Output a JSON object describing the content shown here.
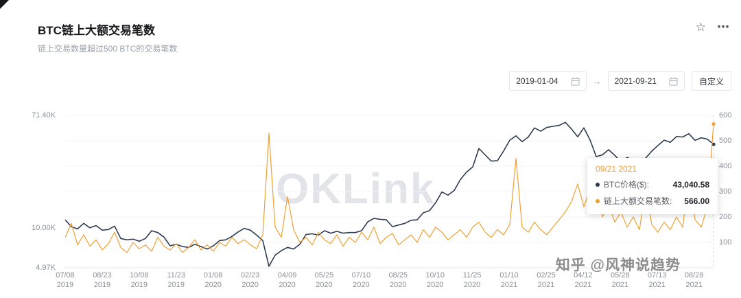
{
  "header": {
    "title": "BTC链上大额交易笔数",
    "subtitle": "链上交易数量超过500 BTC的交易笔数"
  },
  "icons": {
    "star": "☆",
    "more": "⋯",
    "arrow": "→"
  },
  "toolbar": {
    "start_date": "2019-01-04",
    "end_date": "2021-09-21",
    "custom_label": "自定义"
  },
  "watermark": "OKLink",
  "credit": "知乎 @风神说趋势",
  "tooltip": {
    "date": "09/21 2021",
    "rows": [
      {
        "label": "BTC价格($):",
        "value": "43,040.58",
        "color": "#2e3a50"
      },
      {
        "label": "链上大额交易笔数:",
        "value": "566.00",
        "color": "#f0a033"
      }
    ]
  },
  "chart_data": {
    "type": "line",
    "title": "BTC链上大额交易笔数",
    "subtitle": "链上交易数量超过500 BTC的交易笔数",
    "legend_position": "tooltip-only",
    "grid": false,
    "left_axis": {
      "scale": "log",
      "min": 4.97,
      "max": 71.4,
      "unit": "K $",
      "tick_labels": [
        "71.40K",
        "10.00K",
        "4.97K"
      ],
      "tick_values": [
        71.4,
        10.0,
        4.97
      ]
    },
    "right_axis": {
      "scale": "linear",
      "min": 0,
      "max": 600,
      "tick_values": [
        600,
        500,
        400,
        300,
        200,
        100
      ]
    },
    "x_ticks": [
      {
        "date": "07/08",
        "year": "2019"
      },
      {
        "date": "08/23",
        "year": "2019"
      },
      {
        "date": "10/08",
        "year": "2019"
      },
      {
        "date": "11/23",
        "year": "2019"
      },
      {
        "date": "01/08",
        "year": "2020"
      },
      {
        "date": "02/23",
        "year": "2020"
      },
      {
        "date": "04/09",
        "year": "2020"
      },
      {
        "date": "05/25",
        "year": "2020"
      },
      {
        "date": "07/10",
        "year": "2020"
      },
      {
        "date": "08/25",
        "year": "2020"
      },
      {
        "date": "10/10",
        "year": "2020"
      },
      {
        "date": "11/25",
        "year": "2020"
      },
      {
        "date": "01/10",
        "year": "2021"
      },
      {
        "date": "02/25",
        "year": "2021"
      },
      {
        "date": "04/12",
        "year": "2021"
      },
      {
        "date": "05/28",
        "year": "2021"
      },
      {
        "date": "07/13",
        "year": "2021"
      },
      {
        "date": "08/28",
        "year": "2021"
      }
    ],
    "series": [
      {
        "name": "BTC价格($)",
        "axis": "left",
        "color": "#2e3a50",
        "unit": "K",
        "values": [
          11.5,
          10.2,
          9.8,
          10.8,
          10.0,
          10.4,
          9.6,
          9.7,
          10.3,
          8.3,
          8.1,
          8.2,
          7.9,
          8.3,
          9.5,
          9.2,
          8.5,
          7.3,
          7.5,
          7.2,
          7.1,
          7.5,
          7.2,
          6.9,
          7.3,
          8.0,
          8.1,
          8.6,
          9.3,
          9.9,
          9.6,
          8.8,
          8.0,
          5.1,
          6.2,
          6.7,
          7.1,
          6.9,
          7.5,
          8.9,
          9.0,
          8.8,
          9.5,
          9.1,
          9.4,
          9.1,
          9.2,
          9.2,
          9.5,
          11.1,
          11.8,
          11.6,
          11.5,
          10.2,
          10.5,
          10.8,
          11.4,
          11.5,
          13.0,
          13.5,
          15.5,
          18.7,
          17.7,
          19.2,
          23.2,
          26.5,
          29.0,
          40.0,
          35.8,
          32.1,
          32.3,
          38.3,
          46.3,
          49.9,
          45.1,
          48.9,
          57.3,
          54.1,
          57.8,
          58.9,
          59.9,
          63.2,
          56.2,
          49.1,
          57.4,
          46.4,
          34.7,
          35.8,
          39.2,
          35.5,
          31.6,
          34.2,
          32.7,
          31.5,
          33.8,
          38.2,
          42.2,
          46.3,
          44.6,
          49.3,
          48.9,
          51.8,
          46.1,
          48.3,
          47.1,
          43.04
        ]
      },
      {
        "name": "链上大额交易笔数",
        "axis": "right",
        "color": "#f0a033",
        "values": [
          120,
          175,
          90,
          130,
          85,
          110,
          70,
          95,
          140,
          80,
          60,
          100,
          75,
          90,
          65,
          120,
          85,
          70,
          95,
          60,
          80,
          110,
          70,
          90,
          65,
          100,
          85,
          120,
          95,
          110,
          90,
          75,
          130,
          530,
          160,
          120,
          280,
          150,
          100,
          120,
          90,
          140,
          110,
          95,
          130,
          85,
          120,
          100,
          140,
          110,
          160,
          95,
          120,
          135,
          90,
          110,
          130,
          100,
          150,
          120,
          160,
          140,
          110,
          130,
          150,
          120,
          160,
          180,
          140,
          120,
          150,
          130,
          170,
          430,
          160,
          140,
          180,
          150,
          130,
          160,
          190,
          220,
          260,
          330,
          240,
          310,
          290,
          200,
          250,
          180,
          220,
          160,
          200,
          150,
          310,
          170,
          140,
          180,
          150,
          200,
          160,
          350,
          190,
          160,
          240,
          566
        ]
      }
    ],
    "highlight": {
      "x_label": "09/21 2021",
      "BTC价格($)": 43040.58,
      "链上大额交易笔数": 566.0
    }
  }
}
